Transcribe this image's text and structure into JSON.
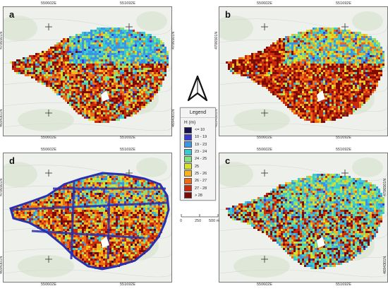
{
  "panels": [
    {
      "id": "a",
      "label": "a"
    },
    {
      "id": "b",
      "label": "b"
    },
    {
      "id": "d",
      "label": "d"
    },
    {
      "id": "c",
      "label": "c"
    }
  ],
  "coords": {
    "x_left": "550602E",
    "x_right": "551692E",
    "y_top": "4706501N",
    "y_bottom": "4694301N"
  },
  "legend": {
    "title": "Legend",
    "unit": "H (m)",
    "classes": [
      {
        "label": "<= 10",
        "color": "#16124e"
      },
      {
        "label": "10 - 19",
        "color": "#3a3bd0"
      },
      {
        "label": "19 - 23",
        "color": "#3b95e6"
      },
      {
        "label": "23 - 24",
        "color": "#39c9cf"
      },
      {
        "label": "24 - 25",
        "color": "#86e07c"
      },
      {
        "label": "25",
        "color": "#d6e12c"
      },
      {
        "label": "25 - 26",
        "color": "#f7b21c"
      },
      {
        "label": "26 - 27",
        "color": "#ef6a12"
      },
      {
        "label": "27 - 28",
        "color": "#c92a0e"
      },
      {
        "label": "> 28",
        "color": "#7e0a06"
      }
    ]
  },
  "scalebar": {
    "labels": [
      "0",
      "250",
      "500 m"
    ]
  },
  "north_arrow": {
    "icon": "north-arrow-icon"
  }
}
